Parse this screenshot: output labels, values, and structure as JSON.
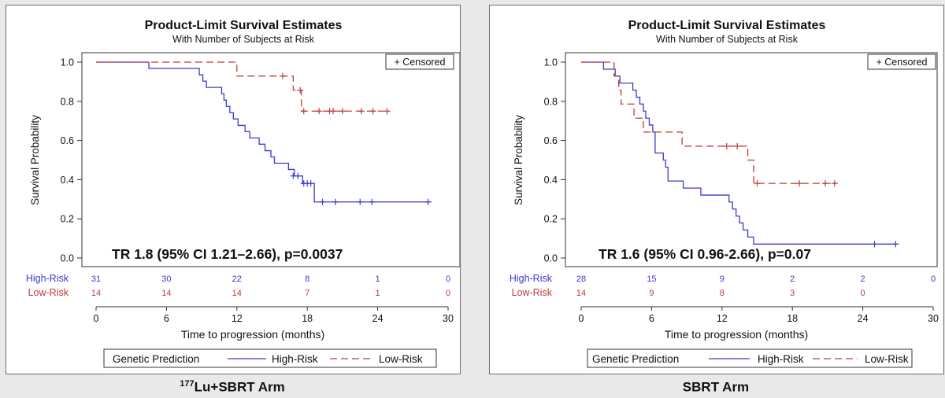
{
  "chart_data": [
    {
      "type": "line",
      "title": "Product-Limit Survival Estimates",
      "subtitle": "With Number of Subjects at Risk",
      "xlabel": "Time to progression (months)",
      "ylabel": "Survival Probability",
      "xlim": [
        0,
        30
      ],
      "ylim": [
        0,
        1
      ],
      "xticks": [
        "0",
        "6",
        "12",
        "18",
        "24",
        "30"
      ],
      "yticks": [
        "0.0",
        "0.2",
        "0.4",
        "0.6",
        "0.8",
        "1.0"
      ],
      "censored_label": "+ Censored",
      "annotation": "TR 1.8 (95% CI 1.21–2.66), p=0.0037",
      "legend_title": "Genetic Prediction",
      "grid": false,
      "series": [
        {
          "name": "High-Risk",
          "color": "#3a3ad0",
          "dash": "solid",
          "steps": [
            [
              0,
              1.0
            ],
            [
              4.5,
              0.968
            ],
            [
              8.8,
              0.935
            ],
            [
              9.1,
              0.903
            ],
            [
              9.4,
              0.871
            ],
            [
              10.7,
              0.839
            ],
            [
              10.9,
              0.806
            ],
            [
              11.1,
              0.774
            ],
            [
              11.4,
              0.742
            ],
            [
              11.7,
              0.71
            ],
            [
              12.1,
              0.677
            ],
            [
              12.7,
              0.645
            ],
            [
              13.1,
              0.613
            ],
            [
              13.9,
              0.581
            ],
            [
              14.4,
              0.548
            ],
            [
              14.9,
              0.516
            ],
            [
              15.2,
              0.484
            ],
            [
              16.4,
              0.452
            ],
            [
              16.9,
              0.419
            ],
            [
              17.6,
              0.381
            ],
            [
              18.6,
              0.286
            ],
            [
              28.5,
              0.286
            ]
          ],
          "censored": [
            [
              16.8,
              0.419
            ],
            [
              17.2,
              0.419
            ],
            [
              17.7,
              0.381
            ],
            [
              18.0,
              0.381
            ],
            [
              18.3,
              0.381
            ],
            [
              19.3,
              0.286
            ],
            [
              20.4,
              0.286
            ],
            [
              22.5,
              0.286
            ],
            [
              23.5,
              0.286
            ],
            [
              28.3,
              0.286
            ]
          ],
          "at_risk": [
            "31",
            "30",
            "22",
            "8",
            "1",
            "0"
          ]
        },
        {
          "name": "Low-Risk",
          "color": "#c03a3a",
          "dash": "dashed",
          "steps": [
            [
              0,
              1.0
            ],
            [
              12.0,
              0.929
            ],
            [
              16.8,
              0.857
            ],
            [
              17.5,
              0.75
            ],
            [
              25.0,
              0.75
            ]
          ],
          "censored": [
            [
              15.9,
              0.929
            ],
            [
              17.4,
              0.857
            ],
            [
              17.7,
              0.75
            ],
            [
              19.0,
              0.75
            ],
            [
              19.9,
              0.75
            ],
            [
              20.2,
              0.75
            ],
            [
              21.0,
              0.75
            ],
            [
              22.6,
              0.75
            ],
            [
              23.6,
              0.75
            ],
            [
              24.8,
              0.75
            ]
          ],
          "at_risk": [
            "14",
            "14",
            "14",
            "7",
            "1",
            "0"
          ]
        }
      ]
    },
    {
      "type": "line",
      "title": "Product-Limit Survival Estimates",
      "subtitle": "With Number of Subjects at Risk",
      "xlabel": "Time to progression (months)",
      "ylabel": "Survival Probability",
      "xlim": [
        0,
        30
      ],
      "ylim": [
        0,
        1
      ],
      "xticks": [
        "0",
        "6",
        "12",
        "18",
        "24",
        "30"
      ],
      "yticks": [
        "0.0",
        "0.2",
        "0.4",
        "0.6",
        "0.8",
        "1.0"
      ],
      "censored_label": "+ Censored",
      "annotation": "TR 1.6 (95% CI 0.96-2.66), p=0.07",
      "legend_title": "Genetic Prediction",
      "grid": false,
      "series": [
        {
          "name": "High-Risk",
          "color": "#3a3ad0",
          "dash": "solid",
          "steps": [
            [
              0,
              1.0
            ],
            [
              1.9,
              0.964
            ],
            [
              2.9,
              0.929
            ],
            [
              3.3,
              0.893
            ],
            [
              4.4,
              0.857
            ],
            [
              4.7,
              0.821
            ],
            [
              5.0,
              0.786
            ],
            [
              5.3,
              0.75
            ],
            [
              5.5,
              0.714
            ],
            [
              5.8,
              0.679
            ],
            [
              6.1,
              0.643
            ],
            [
              6.3,
              0.536
            ],
            [
              7.0,
              0.5
            ],
            [
              7.2,
              0.464
            ],
            [
              7.4,
              0.393
            ],
            [
              8.7,
              0.357
            ],
            [
              10.2,
              0.321
            ],
            [
              12.6,
              0.286
            ],
            [
              12.9,
              0.25
            ],
            [
              13.2,
              0.214
            ],
            [
              13.5,
              0.179
            ],
            [
              13.8,
              0.143
            ],
            [
              14.2,
              0.107
            ],
            [
              14.7,
              0.071
            ],
            [
              27.0,
              0.071
            ]
          ],
          "censored": [
            [
              25.0,
              0.071
            ],
            [
              26.8,
              0.071
            ]
          ],
          "at_risk": [
            "28",
            "15",
            "9",
            "2",
            "2",
            "0"
          ]
        },
        {
          "name": "Low-Risk",
          "color": "#c03a3a",
          "dash": "dashed",
          "steps": [
            [
              0,
              1.0
            ],
            [
              2.8,
              0.929
            ],
            [
              3.2,
              0.857
            ],
            [
              3.4,
              0.786
            ],
            [
              4.5,
              0.714
            ],
            [
              5.3,
              0.643
            ],
            [
              8.6,
              0.571
            ],
            [
              14.2,
              0.5
            ],
            [
              14.7,
              0.381
            ],
            [
              21.8,
              0.381
            ]
          ],
          "censored": [
            [
              12.4,
              0.571
            ],
            [
              13.3,
              0.571
            ],
            [
              15.0,
              0.381
            ],
            [
              18.6,
              0.381
            ],
            [
              20.8,
              0.381
            ],
            [
              21.6,
              0.381
            ]
          ],
          "at_risk": [
            "14",
            "9",
            "8",
            "3",
            "0",
            ""
          ]
        }
      ]
    }
  ],
  "captions": [
    {
      "sup": "177",
      "text": "Lu+SBRT Arm"
    },
    {
      "sup": "",
      "text": "SBRT Arm"
    }
  ]
}
